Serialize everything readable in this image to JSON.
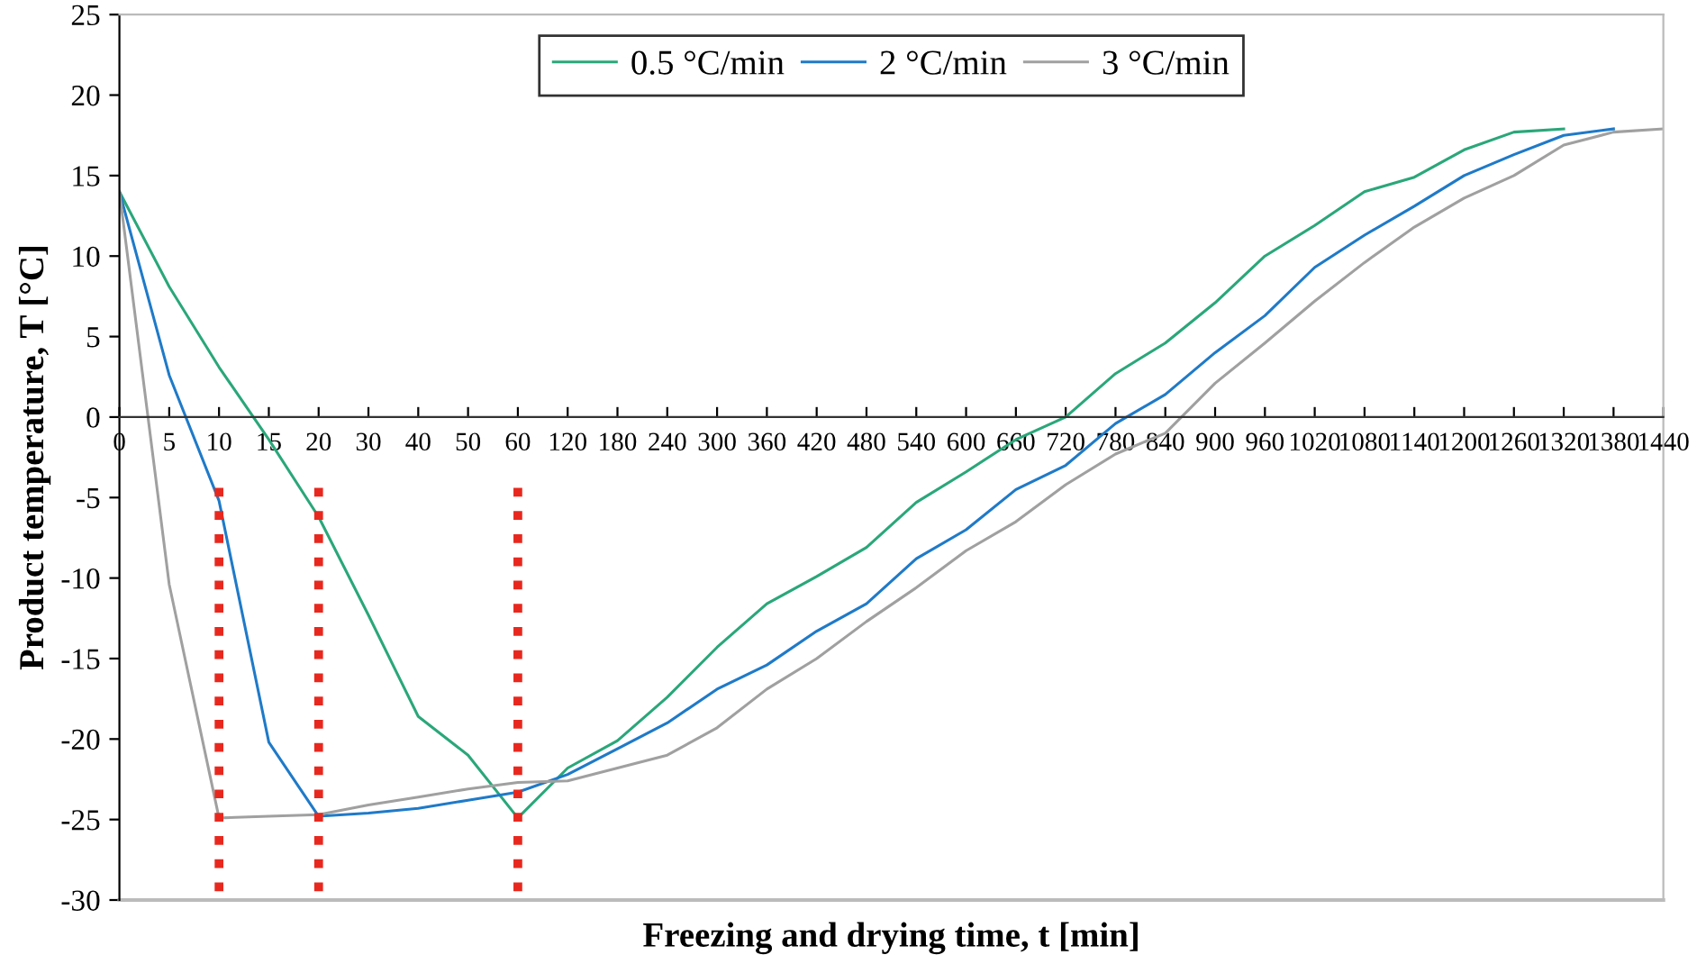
{
  "chart_data": {
    "type": "line",
    "xlabel": "Freezing and drying time, t [min]",
    "ylabel": "Product temperature, T [°C]",
    "categories": [
      "0",
      "5",
      "10",
      "15",
      "20",
      "30",
      "40",
      "50",
      "60",
      "120",
      "180",
      "240",
      "300",
      "360",
      "420",
      "480",
      "540",
      "600",
      "660",
      "720",
      "780",
      "840",
      "900",
      "960",
      "1020",
      "1080",
      "1140",
      "1200",
      "1260",
      "1320",
      "1380",
      "1440"
    ],
    "ylim": [
      -30,
      25
    ],
    "yticks": [
      -30,
      -25,
      -20,
      -15,
      -10,
      -5,
      0,
      5,
      10,
      15,
      20,
      25
    ],
    "grid": false,
    "legend": "top",
    "marker": "none",
    "line_style": "solid",
    "series": [
      {
        "name": "0.5 °C/min",
        "color": "#2aa77a",
        "values": [
          14,
          8.1,
          3.1,
          -1.4,
          -6.2,
          -12.3,
          -18.6,
          -21,
          -24.9,
          -21.8,
          -20.1,
          -17.4,
          -14.3,
          -11.6,
          -9.9,
          -8.1,
          -5.3,
          -3.4,
          -1.4,
          0,
          2.7,
          4.6,
          7.1,
          10,
          11.9,
          14,
          14.9,
          16.6,
          17.7,
          17.9,
          null,
          null
        ]
      },
      {
        "name": "2 °C/min",
        "color": "#1f7ac8",
        "values": [
          14,
          2.6,
          -5.2,
          -20.2,
          -24.8,
          -24.6,
          -24.3,
          -23.8,
          -23.3,
          -22.2,
          -20.6,
          -19,
          -16.9,
          -15.4,
          -13.3,
          -11.6,
          -8.8,
          -7,
          -4.5,
          -3,
          -0.4,
          1.4,
          4,
          6.3,
          9.3,
          11.3,
          13.1,
          15,
          16.3,
          17.5,
          17.9,
          null
        ]
      },
      {
        "name": "3 °C/min",
        "color": "#a0a0a0",
        "values": [
          14,
          -10.4,
          -24.9,
          -24.8,
          -24.7,
          -24.1,
          -23.6,
          -23.1,
          -22.7,
          -22.6,
          -21.8,
          -21,
          -19.3,
          -16.9,
          -15,
          -12.7,
          -10.6,
          -8.3,
          -6.5,
          -4.2,
          -2.3,
          -1,
          2.1,
          4.6,
          7.2,
          9.6,
          11.8,
          13.6,
          15,
          16.9,
          17.7,
          17.9
        ]
      }
    ],
    "ref_lines": [
      {
        "axis": "x",
        "value": "10",
        "color": "#e8281e",
        "line_style": "dotted"
      },
      {
        "axis": "x",
        "value": "20",
        "color": "#e8281e",
        "line_style": "dotted"
      },
      {
        "axis": "x",
        "value": "60",
        "color": "#e8281e",
        "line_style": "dotted"
      }
    ]
  }
}
